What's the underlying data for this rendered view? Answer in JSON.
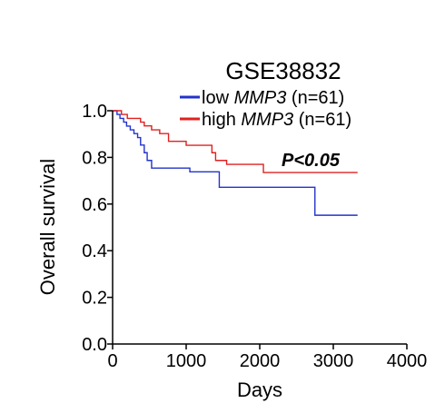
{
  "chart_data": {
    "type": "line",
    "title": "GSE38832",
    "xlabel": "Days",
    "ylabel": "Overall survival",
    "xlim": [
      0,
      4000
    ],
    "ylim": [
      0.0,
      1.0
    ],
    "x_ticks": [
      "0",
      "1000",
      "2000",
      "3000",
      "4000"
    ],
    "y_ticks": [
      "0.0",
      "0.2",
      "0.4",
      "0.6",
      "0.8",
      "1.0"
    ],
    "grid": false,
    "legend_placement": "top-right",
    "annotation": "P<0.05",
    "series": [
      {
        "name_plain": "low ",
        "name_italic": "MMP3",
        "name_suffix": " (n=61)",
        "color": "#2233cc",
        "steps": [
          [
            0,
            1.0
          ],
          [
            60,
            0.984
          ],
          [
            100,
            0.967
          ],
          [
            150,
            0.951
          ],
          [
            190,
            0.934
          ],
          [
            240,
            0.918
          ],
          [
            290,
            0.902
          ],
          [
            340,
            0.885
          ],
          [
            380,
            0.853
          ],
          [
            430,
            0.82
          ],
          [
            470,
            0.787
          ],
          [
            530,
            0.754
          ],
          [
            1050,
            0.738
          ],
          [
            1450,
            0.672
          ],
          [
            2750,
            0.552
          ],
          [
            3330,
            0.552
          ]
        ]
      },
      {
        "name_plain": "high ",
        "name_italic": "MMP3",
        "name_suffix": " (n=61)",
        "color": "#e02020",
        "steps": [
          [
            0,
            1.0
          ],
          [
            120,
            0.984
          ],
          [
            200,
            0.967
          ],
          [
            380,
            0.951
          ],
          [
            430,
            0.935
          ],
          [
            530,
            0.918
          ],
          [
            640,
            0.902
          ],
          [
            760,
            0.869
          ],
          [
            1000,
            0.852
          ],
          [
            1350,
            0.82
          ],
          [
            1400,
            0.787
          ],
          [
            1550,
            0.77
          ],
          [
            2050,
            0.735
          ],
          [
            3330,
            0.735
          ]
        ]
      }
    ]
  }
}
